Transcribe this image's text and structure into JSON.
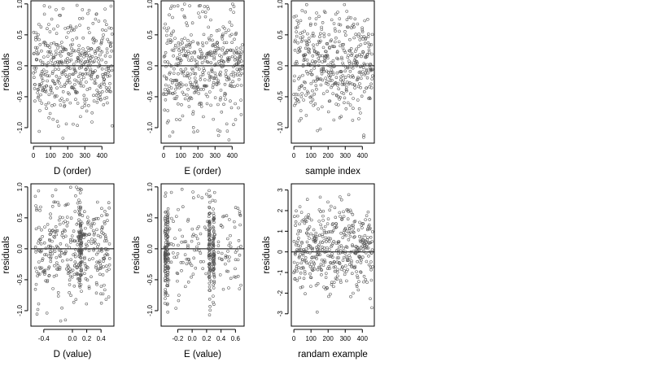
{
  "chart_data": [
    {
      "type": "scatter",
      "xlabel": "D (order)",
      "ylabel": "residuals",
      "xlim": [
        -15,
        470
      ],
      "ylim": [
        -1.25,
        1.05
      ],
      "xticks": [
        0,
        100,
        200,
        300,
        400
      ],
      "yticks": [
        -1.0,
        -0.5,
        0.0,
        0.5,
        1.0
      ],
      "xtick_labels": [
        "0",
        "100",
        "200",
        "300",
        "400"
      ],
      "ytick_labels": [
        "-1.0",
        "-0.5",
        "0.0",
        "0.5",
        "1.0"
      ],
      "reference_line_y": 0,
      "gen": {
        "kind": "index",
        "n": 440,
        "xmin": 0,
        "xmax": 460,
        "sd": 0.42,
        "lo": -1.2,
        "hi": 1.0,
        "seed": 11
      }
    },
    {
      "type": "scatter",
      "xlabel": "E (order)",
      "ylabel": "residuals",
      "xlim": [
        -15,
        470
      ],
      "ylim": [
        -1.25,
        1.05
      ],
      "xticks": [
        0,
        100,
        200,
        300,
        400
      ],
      "yticks": [
        -1.0,
        -0.5,
        0.0,
        0.5,
        1.0
      ],
      "xtick_labels": [
        "0",
        "100",
        "200",
        "300",
        "400"
      ],
      "ytick_labels": [
        "-1.0",
        "-0.5",
        "0.0",
        "0.5",
        "1.0"
      ],
      "reference_line_y": 0,
      "gen": {
        "kind": "index",
        "n": 440,
        "xmin": 0,
        "xmax": 460,
        "sd": 0.42,
        "lo": -1.2,
        "hi": 1.0,
        "seed": 23
      }
    },
    {
      "type": "scatter",
      "xlabel": "sample index",
      "ylabel": "residuals",
      "xlim": [
        -15,
        470
      ],
      "ylim": [
        -1.25,
        1.05
      ],
      "xticks": [
        0,
        100,
        200,
        300,
        400
      ],
      "yticks": [
        -1.0,
        -0.5,
        0.0,
        0.5,
        1.0
      ],
      "xtick_labels": [
        "0",
        "100",
        "200",
        "300",
        "400"
      ],
      "ytick_labels": [
        "-1.0",
        "-0.5",
        "0.0",
        "0.5",
        "1.0"
      ],
      "reference_line_y": 0,
      "gen": {
        "kind": "index",
        "n": 440,
        "xmin": 0,
        "xmax": 460,
        "sd": 0.42,
        "lo": -1.2,
        "hi": 1.0,
        "seed": 37
      }
    },
    {
      "type": "scatter",
      "xlabel": "D (value)",
      "ylabel": "residuals",
      "xlim": [
        -0.58,
        0.58
      ],
      "ylim": [
        -1.25,
        1.05
      ],
      "xticks": [
        -0.4,
        0.0,
        0.2,
        0.4
      ],
      "yticks": [
        -1.0,
        -0.5,
        0.0,
        0.5,
        1.0
      ],
      "xtick_labels": [
        "-0.4",
        "0.0",
        "0.2",
        "0.4"
      ],
      "ytick_labels": [
        "-1.0",
        "-0.5",
        "0.0",
        "0.5",
        "1.0"
      ],
      "reference_line_y": 0,
      "gen": {
        "kind": "value",
        "n": 440,
        "xmin": -0.52,
        "xmax": 0.52,
        "dense_x": [
          0.1,
          0.12
        ],
        "dense_frac": 0.2,
        "sd": 0.42,
        "lo": -1.2,
        "hi": 1.0,
        "seed": 41
      }
    },
    {
      "type": "scatter",
      "xlabel": "E (value)",
      "ylabel": "residuals",
      "xlim": [
        -0.43,
        0.72
      ],
      "ylim": [
        -1.25,
        1.05
      ],
      "xticks": [
        -0.2,
        0.0,
        0.2,
        0.4,
        0.6
      ],
      "yticks": [
        -1.0,
        -0.5,
        0.0,
        0.5,
        1.0
      ],
      "xtick_labels": [
        "-0.2",
        "0.0",
        "0.2",
        "0.4",
        "0.6"
      ],
      "ytick_labels": [
        "-1.0",
        "-0.5",
        "0.0",
        "0.5",
        "1.0"
      ],
      "reference_line_y": 0,
      "gen": {
        "kind": "value",
        "n": 440,
        "xmin": -0.38,
        "xmax": 0.68,
        "dense_x": [
          -0.37,
          -0.34,
          0.24,
          0.3
        ],
        "dense_frac": 0.6,
        "sd": 0.42,
        "lo": -1.2,
        "hi": 1.0,
        "seed": 53
      }
    },
    {
      "type": "scatter",
      "xlabel": "randam example",
      "ylabel": "residuals",
      "xlim": [
        -15,
        470
      ],
      "ylim": [
        -3.6,
        3.3
      ],
      "xticks": [
        0,
        100,
        200,
        300,
        400
      ],
      "yticks": [
        -3,
        -2,
        -1,
        0,
        1,
        2,
        3
      ],
      "xtick_labels": [
        "0",
        "100",
        "200",
        "300",
        "400"
      ],
      "ytick_labels": [
        "-3",
        "-2",
        "-1",
        "0",
        "1",
        "2",
        "3"
      ],
      "reference_line_y": 0,
      "gen": {
        "kind": "index",
        "n": 440,
        "xmin": 0,
        "xmax": 460,
        "sd": 1.0,
        "lo": -3.2,
        "hi": 3.1,
        "seed": 67
      }
    }
  ]
}
